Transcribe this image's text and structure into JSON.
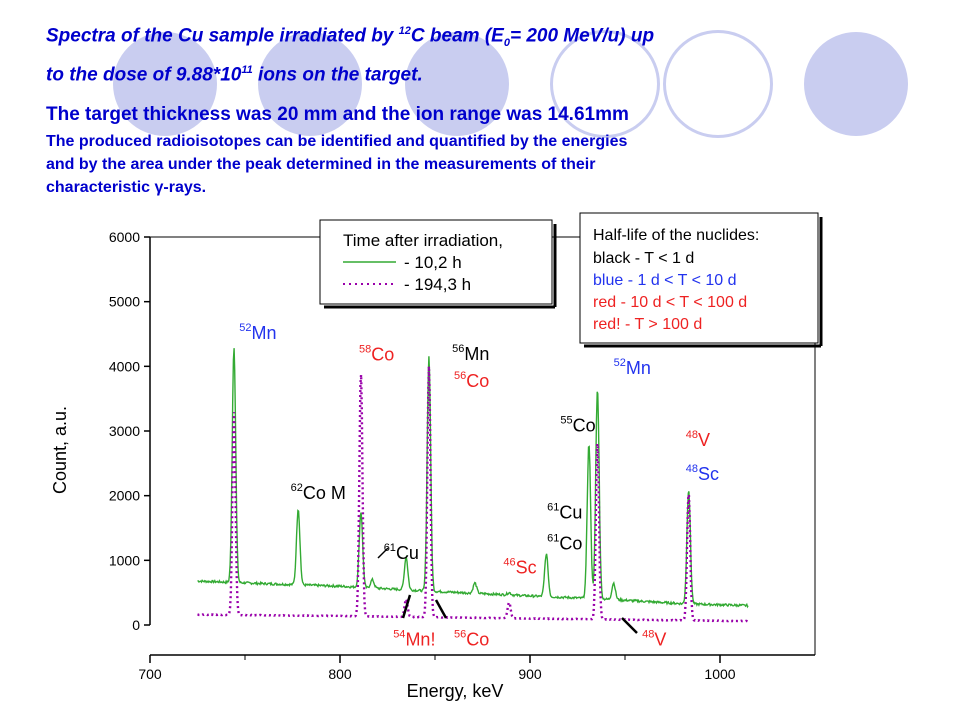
{
  "slide": {
    "title_line1_pre": "Spectra of the Cu sample irradiated by ",
    "title_line1_sup": "12",
    "title_line1_mid": "C beam (E",
    "title_line1_sub": "0",
    "title_line1_post": "= 200 MeV/u) up",
    "title_line2_pre": "to the dose of 9.88*10",
    "title_line2_sup": "11",
    "title_line2_post": " ions on the target.",
    "subtitle": "The target thickness was 20 mm and the ion range was 14.61mm",
    "body_line1": "The produced radioisotopes can be identified and quantified by the energies",
    "body_line2": "and by the area under the peak determined in the measurements of their",
    "body_line3_pre": "characteristic ",
    "body_line3_gamma": "γ",
    "body_line3_post": "-rays."
  },
  "chart_data": {
    "type": "line",
    "xlabel": "Energy, keV",
    "ylabel": "Count, a.u.",
    "xlim": [
      700,
      1050
    ],
    "ylim": [
      0,
      6000
    ],
    "xticks": [
      700,
      800,
      900,
      1000
    ],
    "yticks": [
      0,
      1000,
      2000,
      3000,
      4000,
      5000,
      6000
    ],
    "legend": {
      "title": "Time after irradiation,",
      "entries": [
        {
          "label": "- 10,2 h",
          "color": "#33aa33",
          "style": "solid"
        },
        {
          "label": "- 194,3 h",
          "color": "#9900aa",
          "style": "dotted"
        }
      ]
    },
    "halflife_box": {
      "title": "Half-life of the nuclides:",
      "lines": [
        {
          "text": "black - T < 1 d",
          "color": "#000000"
        },
        {
          "text": "blue - 1 d < T < 10 d",
          "color": "#2233ee"
        },
        {
          "text": "red - 10 d < T < 100 d",
          "color": "#ee2222"
        },
        {
          "text": "red! - T > 100 d",
          "color": "#ee2222"
        }
      ]
    },
    "series": [
      {
        "name": "- 10,2 h",
        "color": "#33aa33",
        "baseline": [
          [
            725,
            680
          ],
          [
            760,
            640
          ],
          [
            800,
            600
          ],
          [
            850,
            520
          ],
          [
            900,
            450
          ],
          [
            940,
            400
          ],
          [
            980,
            330
          ],
          [
            1015,
            300
          ]
        ],
        "peaks": [
          {
            "x": 744.2,
            "y": 4300
          },
          {
            "x": 778,
            "y": 1800
          },
          {
            "x": 811,
            "y": 1750
          },
          {
            "x": 817,
            "y": 700
          },
          {
            "x": 834.8,
            "y": 1050
          },
          {
            "x": 846.8,
            "y": 4150
          },
          {
            "x": 871,
            "y": 650
          },
          {
            "x": 889,
            "y": 500
          },
          {
            "x": 908.6,
            "y": 1100
          },
          {
            "x": 931,
            "y": 2800
          },
          {
            "x": 935.5,
            "y": 3650
          },
          {
            "x": 944,
            "y": 650
          },
          {
            "x": 983.5,
            "y": 2100
          }
        ]
      },
      {
        "name": "- 194,3 h",
        "color": "#9900aa",
        "baseline": [
          [
            725,
            160
          ],
          [
            800,
            140
          ],
          [
            900,
            100
          ],
          [
            1015,
            60
          ]
        ],
        "peaks": [
          {
            "x": 744.2,
            "y": 3300
          },
          {
            "x": 811,
            "y": 3900
          },
          {
            "x": 834.8,
            "y": 400
          },
          {
            "x": 846.8,
            "y": 4000
          },
          {
            "x": 889,
            "y": 350
          },
          {
            "x": 935.5,
            "y": 2850
          },
          {
            "x": 983.5,
            "y": 2050
          }
        ]
      }
    ],
    "annotations": [
      {
        "sup": "52",
        "text": "Mn",
        "color": "#2233ee",
        "x": 747,
        "y": 4420
      },
      {
        "sup": "62",
        "text": "Co M",
        "color": "#000000",
        "x": 774,
        "y": 1950
      },
      {
        "sup": "58",
        "text": "Co",
        "color": "#ee2222",
        "x": 810,
        "y": 4090
      },
      {
        "sup": "61",
        "text": "Cu",
        "color": "#000000",
        "x": 823,
        "y": 1020
      },
      {
        "sup": "56",
        "text": "Mn",
        "color": "#000000",
        "x": 859,
        "y": 4100
      },
      {
        "sup": "56",
        "text": "Co",
        "color": "#ee2222",
        "x": 860,
        "y": 3680
      },
      {
        "sup": "55",
        "text": "Co",
        "color": "#000000",
        "x": 916,
        "y": 2990
      },
      {
        "sup": "52",
        "text": "Mn",
        "color": "#2233ee",
        "x": 944,
        "y": 3880
      },
      {
        "sup": "61",
        "text": "Cu",
        "color": "#000000",
        "x": 909,
        "y": 1650
      },
      {
        "sup": "61",
        "text": "Co",
        "color": "#000000",
        "x": 909,
        "y": 1170
      },
      {
        "sup": "46",
        "text": "Sc",
        "color": "#ee2222",
        "x": 886,
        "y": 800
      },
      {
        "sup": "48",
        "text": "V",
        "color": "#ee2222",
        "x": 982,
        "y": 2770
      },
      {
        "sup": "48",
        "text": "Sc",
        "color": "#2233ee",
        "x": 982,
        "y": 2240
      },
      {
        "sup": "54",
        "text": "Mn!",
        "color": "#ee2222",
        "x": 828,
        "y": -320
      },
      {
        "sup": "56",
        "text": "Co",
        "color": "#ee2222",
        "x": 860,
        "y": -320
      },
      {
        "sup": "48",
        "text": "V",
        "color": "#ee2222",
        "x": 959,
        "y": -320
      }
    ]
  }
}
